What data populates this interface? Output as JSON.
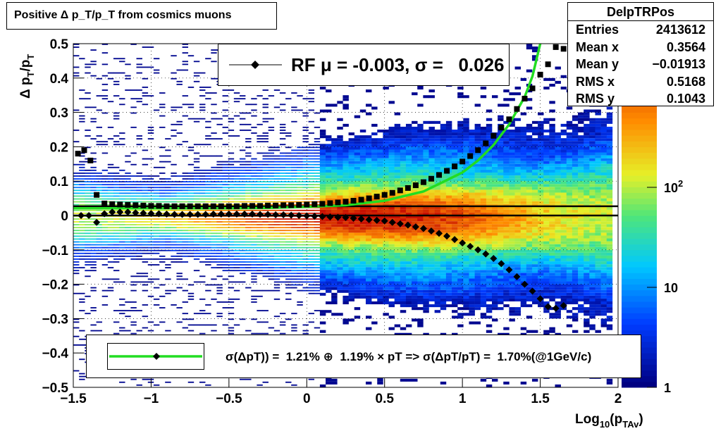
{
  "title": "Positive Δ p_T/p_T from cosmics muons",
  "stats": {
    "name": "DelpTRPos",
    "rows": [
      {
        "label": "Entries",
        "value": "2413612"
      },
      {
        "label": "Mean x",
        "value": "0.3564"
      },
      {
        "label": "Mean y",
        "value": "−0.01913"
      },
      {
        "label": "RMS x",
        "value": "0.5168"
      },
      {
        "label": "RMS y",
        "value": "0.1043"
      }
    ]
  },
  "legend_top": "RF μ = -0.003, σ =   0.026",
  "legend_bottom": "σ(ΔpT)) =  1.21% ⊕  1.19% × pT => σ(ΔpT/pT) =  1.70%(@1GeV/c)",
  "colors": {
    "fit_line": "#22dd22",
    "markers": "#000000"
  },
  "chart_data": {
    "type": "heatmap",
    "xlabel": "Log10(pTAv)",
    "ylabel": "Δ pT/pT",
    "xlim": [
      -1.5,
      2
    ],
    "ylim": [
      -0.5,
      0.5
    ],
    "xticks": [
      "−1.5",
      "−1",
      "−0.5",
      "0",
      "0.5",
      "1",
      "1.5",
      "2"
    ],
    "yticks": [
      "−0.5",
      "−0.4",
      "−0.3",
      "−0.2",
      "−0.1",
      "0",
      "0.1",
      "0.2",
      "0.3",
      "0.4",
      "0.5"
    ],
    "colorbar": {
      "scale": "log",
      "ticks": [
        "1",
        "10",
        "10^2"
      ]
    },
    "grid": true,
    "series": [
      {
        "marker": "diamond",
        "x": [
          -1.45,
          -1.4,
          -1.35,
          -1.3,
          -1.25,
          -1.2,
          -1.15,
          -1.1,
          -1.05,
          -1.0,
          -0.95,
          -0.9,
          -0.85,
          -0.8,
          -0.75,
          -0.7,
          -0.65,
          -0.6,
          -0.55,
          -0.5,
          -0.45,
          -0.4,
          -0.35,
          -0.3,
          -0.25,
          -0.2,
          -0.15,
          -0.1,
          -0.05,
          0.0,
          0.05,
          0.1,
          0.15,
          0.2,
          0.25,
          0.3,
          0.35,
          0.4,
          0.45,
          0.5,
          0.55,
          0.6,
          0.65,
          0.7,
          0.75,
          0.8,
          0.85,
          0.9,
          0.95,
          1.0,
          1.05,
          1.1,
          1.15,
          1.2,
          1.25,
          1.3,
          1.35,
          1.4,
          1.45,
          1.5,
          1.55,
          1.6,
          1.65
        ],
        "y": [
          0.0,
          0.0,
          -0.02,
          0.005,
          0.01,
          0.01,
          0.01,
          0.008,
          0.007,
          0.006,
          0.005,
          0.004,
          0.003,
          0.003,
          0.003,
          0.003,
          0.003,
          0.004,
          0.004,
          0.004,
          0.004,
          0.004,
          0.004,
          0.003,
          0.003,
          0.002,
          0.002,
          0.001,
          0.0,
          -0.001,
          -0.002,
          -0.003,
          -0.004,
          -0.005,
          -0.006,
          -0.008,
          -0.01,
          -0.012,
          -0.014,
          -0.016,
          -0.02,
          -0.024,
          -0.028,
          -0.033,
          -0.038,
          -0.045,
          -0.052,
          -0.06,
          -0.07,
          -0.08,
          -0.09,
          -0.1,
          -0.112,
          -0.125,
          -0.14,
          -0.158,
          -0.178,
          -0.2,
          -0.22,
          -0.242,
          -0.265,
          -0.27,
          -0.262
        ]
      },
      {
        "marker": "square",
        "x": [
          -1.47,
          -1.43,
          -1.39,
          -1.35,
          -1.3,
          -1.25,
          -1.2,
          -1.15,
          -1.1,
          -1.05,
          -1.0,
          -0.95,
          -0.9,
          -0.85,
          -0.8,
          -0.75,
          -0.7,
          -0.65,
          -0.6,
          -0.55,
          -0.5,
          -0.45,
          -0.4,
          -0.35,
          -0.3,
          -0.25,
          -0.2,
          -0.15,
          -0.1,
          -0.05,
          0.0,
          0.05,
          0.1,
          0.15,
          0.2,
          0.25,
          0.3,
          0.35,
          0.4,
          0.45,
          0.5,
          0.55,
          0.6,
          0.65,
          0.7,
          0.75,
          0.8,
          0.85,
          0.9,
          0.95,
          1.0,
          1.05,
          1.1,
          1.15,
          1.2,
          1.25,
          1.3,
          1.35,
          1.4,
          1.45,
          1.5,
          1.55,
          1.6,
          1.65
        ],
        "y": [
          0.18,
          0.19,
          0.16,
          0.06,
          0.035,
          0.033,
          0.032,
          0.031,
          0.03,
          0.029,
          0.028,
          0.028,
          0.027,
          0.027,
          0.027,
          0.027,
          0.027,
          0.027,
          0.027,
          0.027,
          0.027,
          0.027,
          0.028,
          0.028,
          0.028,
          0.029,
          0.029,
          0.03,
          0.03,
          0.031,
          0.032,
          0.033,
          0.034,
          0.036,
          0.038,
          0.04,
          0.043,
          0.046,
          0.05,
          0.055,
          0.06,
          0.066,
          0.073,
          0.08,
          0.088,
          0.097,
          0.107,
          0.118,
          0.13,
          0.143,
          0.157,
          0.173,
          0.19,
          0.21,
          0.232,
          0.256,
          0.28,
          0.31,
          0.34,
          0.37,
          0.41,
          0.44,
          0.49,
          0.485
        ]
      }
    ],
    "fit": {
      "x": [
        -1.5,
        -1.25,
        -1.0,
        -0.75,
        -0.5,
        -0.25,
        0.0,
        0.25,
        0.5,
        0.75,
        1.0,
        1.1,
        1.2,
        1.3,
        1.4,
        1.45,
        1.5
      ],
      "y": [
        0.021,
        0.021,
        0.021,
        0.021,
        0.021,
        0.022,
        0.025,
        0.03,
        0.043,
        0.07,
        0.125,
        0.16,
        0.205,
        0.265,
        0.345,
        0.405,
        0.5
      ]
    },
    "ref_lines_y": [
      0.0,
      0.027
    ]
  }
}
